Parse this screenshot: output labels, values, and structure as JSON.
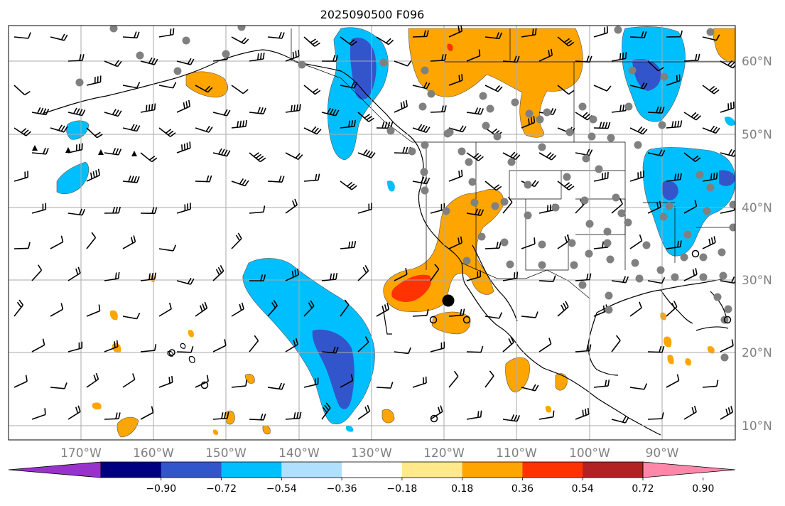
{
  "title": "2025090500 F096",
  "map": {
    "latitude_labels": [
      "60°N",
      "50°N",
      "40°N",
      "30°N",
      "20°N",
      "10°N"
    ],
    "longitude_labels": [
      "170°W",
      "160°W",
      "150°W",
      "140°W",
      "130°W",
      "120°W",
      "110°W",
      "100°W",
      "90°W"
    ],
    "gridlines": true,
    "wind_barbs": true,
    "station_markers": "gray dots",
    "marker_current_position": "black dot"
  },
  "colorbar": {
    "ticks": [
      "−0.90",
      "−0.72",
      "−0.54",
      "−0.36",
      "−0.18",
      "0.18",
      "0.36",
      "0.54",
      "0.72",
      "0.90"
    ],
    "colors": [
      "#9932cc",
      "#000080",
      "#3355cc",
      "#00bfff",
      "#b0e0ff",
      "#ffffff",
      "#ffe98a",
      "#ffa500",
      "#ff3300",
      "#b22222",
      "#ff88aa"
    ],
    "extend": "both"
  }
}
